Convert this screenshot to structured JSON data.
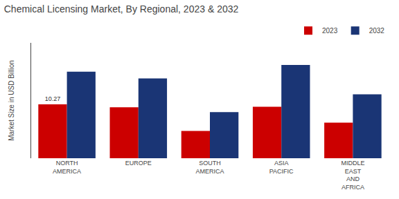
{
  "chart_data": {
    "type": "bar",
    "title": "Chemical Licensing Market, By Regional, 2023 & 2032",
    "ylabel": "Market Size in USD Billion",
    "categories": [
      "NORTH\nAMERICA",
      "EUROPE",
      "SOUTH\nAMERICA",
      "ASIA\nPACIFIC",
      "MIDDLE\nEAST\nAND\nAFRICA"
    ],
    "series": [
      {
        "name": "2023",
        "color": "#cc0000",
        "values": [
          10.27,
          9.7,
          5.2,
          9.8,
          6.8
        ]
      },
      {
        "name": "2032",
        "color": "#1a3575",
        "values": [
          16.5,
          15.2,
          8.8,
          17.8,
          12.2
        ]
      }
    ],
    "annotations": [
      {
        "text": "10.27",
        "series": "2023",
        "category": "NORTH\nAMERICA"
      }
    ],
    "ylim": [
      0,
      22
    ],
    "yticks": [],
    "tick_labels": "x",
    "grid": false,
    "legend": "upper right"
  }
}
